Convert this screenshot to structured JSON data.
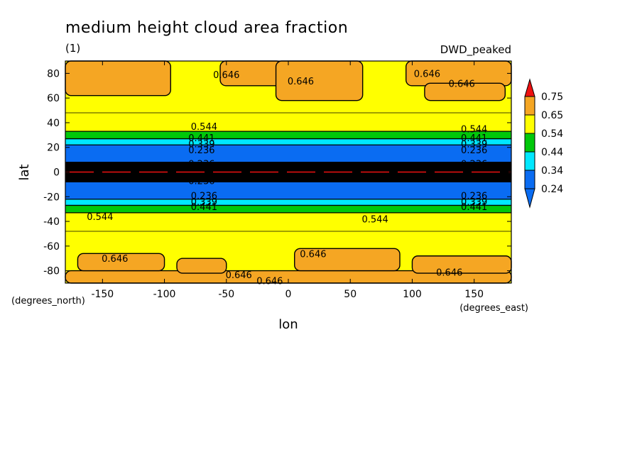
{
  "chart_data": {
    "type": "heatmap",
    "title": "medium height cloud area fraction",
    "subtitle_left": "(1)",
    "subtitle_right": "DWD_peaked",
    "xlabel": "lon",
    "ylabel": "lat",
    "x_unit": "(degrees_east)",
    "y_unit": "(degrees_north)",
    "xlim": [
      -180,
      180
    ],
    "ylim": [
      -90,
      90
    ],
    "x_ticks": [
      -150,
      -100,
      -50,
      0,
      50,
      100,
      150
    ],
    "y_ticks": [
      -80,
      -60,
      -40,
      -20,
      0,
      20,
      40,
      60,
      80
    ],
    "x_tick_labels": [
      "-150",
      "-100",
      "-50",
      "0",
      "50",
      "100",
      "150"
    ],
    "y_tick_labels": [
      "-80",
      "-60",
      "-40",
      "-20",
      "0",
      "20",
      "40",
      "60",
      "80"
    ],
    "grid": false,
    "colorbar": {
      "placement": "right",
      "levels": [
        0.24,
        0.34,
        0.44,
        0.54,
        0.65,
        0.75
      ],
      "labels": [
        "0.24",
        "0.34",
        "0.44",
        "0.54",
        "0.65",
        "0.75"
      ],
      "colors": [
        "#0a6cf2",
        "#00e8ff",
        "#00c80a",
        "#ffff00",
        "#f5a623",
        "#ee1111"
      ],
      "below_color": "#0a6cf2",
      "above_color": "#ee1111"
    },
    "latitude_bands": [
      {
        "lat": [
          33,
          90
        ],
        "value": 0.6
      },
      {
        "lat": [
          27,
          33
        ],
        "value": 0.49
      },
      {
        "lat": [
          22,
          27
        ],
        "value": 0.38
      },
      {
        "lat": [
          8,
          22
        ],
        "value": 0.28
      },
      {
        "lat": [
          -8,
          8
        ],
        "value": 0.2
      },
      {
        "lat": [
          -22,
          -8
        ],
        "value": 0.28
      },
      {
        "lat": [
          -27,
          -22
        ],
        "value": 0.38
      },
      {
        "lat": [
          -33,
          -27
        ],
        "value": 0.49
      },
      {
        "lat": [
          -90,
          -33
        ],
        "value": 0.6
      }
    ],
    "high_value_regions": [
      {
        "lon": [
          -180,
          -95
        ],
        "lat": [
          62,
          90
        ],
        "value": 0.67
      },
      {
        "lon": [
          -55,
          -5
        ],
        "lat": [
          70,
          90
        ],
        "value": 0.67
      },
      {
        "lon": [
          -10,
          60
        ],
        "lat": [
          58,
          90
        ],
        "value": 0.67
      },
      {
        "lon": [
          95,
          180
        ],
        "lat": [
          70,
          90
        ],
        "value": 0.67
      },
      {
        "lon": [
          110,
          175
        ],
        "lat": [
          58,
          72
        ],
        "value": 0.67
      },
      {
        "lon": [
          -180,
          180
        ],
        "lat": [
          -90,
          -80
        ],
        "value": 0.67
      },
      {
        "lon": [
          -170,
          -100
        ],
        "lat": [
          -80,
          -66
        ],
        "value": 0.67
      },
      {
        "lon": [
          -90,
          -50
        ],
        "lat": [
          -82,
          -70
        ],
        "value": 0.67
      },
      {
        "lon": [
          5,
          90
        ],
        "lat": [
          -80,
          -62
        ],
        "value": 0.67
      },
      {
        "lon": [
          100,
          180
        ],
        "lat": [
          -82,
          -68
        ],
        "value": 0.67
      }
    ],
    "contour_labels": [
      {
        "text": "0.646",
        "lon": -50,
        "lat": 79
      },
      {
        "text": "0.646",
        "lon": 10,
        "lat": 74
      },
      {
        "text": "0.646",
        "lon": 112,
        "lat": 80
      },
      {
        "text": "0.646",
        "lon": 140,
        "lat": 72
      },
      {
        "text": "0.544",
        "lon": -68,
        "lat": 37
      },
      {
        "text": "0.441",
        "lon": -70,
        "lat": 28
      },
      {
        "text": "0.339",
        "lon": -70,
        "lat": 23
      },
      {
        "text": "0.236",
        "lon": -70,
        "lat": 18
      },
      {
        "text": "0.236",
        "lon": -70,
        "lat": 7
      },
      {
        "text": "0.236",
        "lon": -70,
        "lat": -7
      },
      {
        "text": "0.236",
        "lon": -68,
        "lat": -19
      },
      {
        "text": "0.339",
        "lon": -68,
        "lat": -24
      },
      {
        "text": "0.441",
        "lon": -68,
        "lat": -28
      },
      {
        "text": "0.544",
        "lon": 150,
        "lat": 35
      },
      {
        "text": "0.441",
        "lon": 150,
        "lat": 28
      },
      {
        "text": "0.339",
        "lon": 150,
        "lat": 23
      },
      {
        "text": "0.236",
        "lon": 150,
        "lat": 18
      },
      {
        "text": "0.236",
        "lon": 150,
        "lat": 7
      },
      {
        "text": "0.236",
        "lon": 150,
        "lat": -19
      },
      {
        "text": "0.339",
        "lon": 150,
        "lat": -24
      },
      {
        "text": "0.441",
        "lon": 150,
        "lat": -28
      },
      {
        "text": "0.544",
        "lon": -152,
        "lat": -36
      },
      {
        "text": "0.544",
        "lon": 70,
        "lat": -38
      },
      {
        "text": "0.646",
        "lon": -140,
        "lat": -70
      },
      {
        "text": "0.646",
        "lon": 20,
        "lat": -66
      },
      {
        "text": "0.646",
        "lon": -40,
        "lat": -83
      },
      {
        "text": "0.646",
        "lon": -15,
        "lat": -88
      },
      {
        "text": "0.646",
        "lon": 130,
        "lat": -81
      }
    ]
  }
}
